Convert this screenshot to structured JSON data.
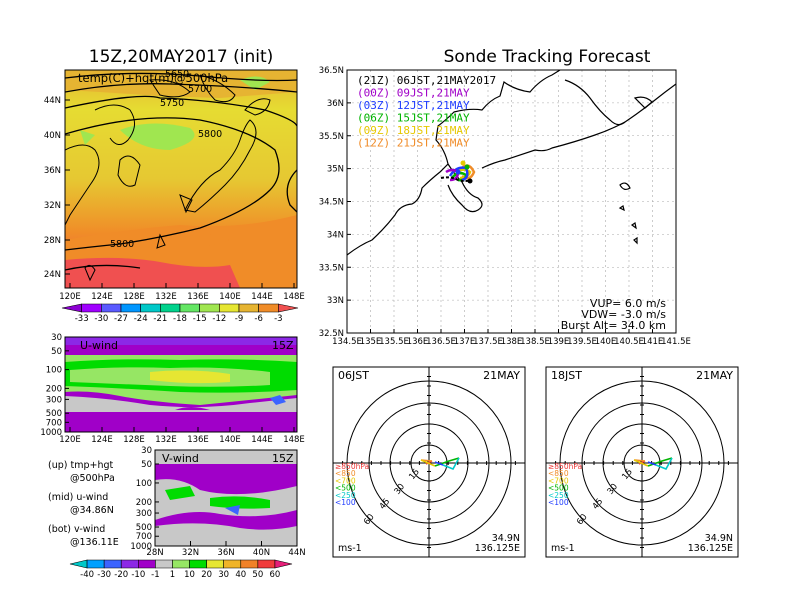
{
  "left": {
    "map_title": "15Z,20MAY2017 (init)",
    "map_label": "temp(C)+hgt(m)@500hPa",
    "contour_labels": [
      "5650",
      "5700",
      "5750",
      "5800",
      "5800"
    ],
    "lat_ticks": [
      "44N",
      "40N",
      "36N",
      "32N",
      "28N",
      "24N"
    ],
    "lon_ticks": [
      "120E",
      "124E",
      "128E",
      "132E",
      "136E",
      "140E",
      "144E",
      "148E"
    ],
    "temp_colorbar": [
      "-33",
      "-30",
      "-27",
      "-24",
      "-21",
      "-18",
      "-15",
      "-12",
      "-9",
      "-6",
      "-3"
    ],
    "temp_colors": [
      "#8c00d2",
      "#a000ff",
      "#5a5aff",
      "#0096ff",
      "#00c8c8",
      "#00d28c",
      "#64e664",
      "#a0e650",
      "#e6e632",
      "#e6b432",
      "#f08c28",
      "#f05050"
    ],
    "uwind_label": "U-wind",
    "uwind_time": "15Z",
    "pressure_ticks": [
      "30",
      "50",
      "100",
      "200",
      "300",
      "500",
      "700",
      "1000"
    ],
    "vwind_label": "V-wind",
    "vwind_time": "15Z",
    "vwind_lat_ticks": [
      "28N",
      "32N",
      "36N",
      "40N",
      "44N"
    ],
    "note_up_1": "(up)  tmp+hgt",
    "note_up_2": "@500hPa",
    "note_mid_1": "(mid)  u-wind",
    "note_mid_2": "@34.86N",
    "note_bot_1": "(bot)  v-wind",
    "note_bot_2": "@136.11E",
    "wind_colorbar": [
      "-40",
      "-30",
      "-20",
      "-10",
      "-1",
      "1",
      "10",
      "20",
      "30",
      "40",
      "50",
      "60"
    ],
    "wind_colors": [
      "#00c8c8",
      "#00a0ff",
      "#3c64ff",
      "#8c28e6",
      "#a000c8",
      "#c8c8c8",
      "#96e664",
      "#00dc00",
      "#e6e632",
      "#f0b428",
      "#f08228",
      "#f03c3c",
      "#e61e78"
    ]
  },
  "right": {
    "title": "Sonde Tracking Forecast",
    "lat_ticks": [
      "36.5N",
      "36N",
      "35.5N",
      "35N",
      "34.5N",
      "34N",
      "33.5N",
      "33N",
      "32.5N"
    ],
    "lon_ticks": [
      "134.5E",
      "135E",
      "135.5E",
      "136E",
      "136.5E",
      "137E",
      "137.5E",
      "138E",
      "138.5E",
      "139E",
      "139.5E",
      "140E",
      "140.5E",
      "141E",
      "141.5E"
    ],
    "legend": [
      {
        "label": "(21Z)  06JST,21MAY2017",
        "color": "#000000"
      },
      {
        "label": "(00Z)  09JST,21MAY",
        "color": "#a000c8"
      },
      {
        "label": "(03Z)  12JST,21MAY",
        "color": "#1e3cff"
      },
      {
        "label": "(06Z)  15JST,21MAY",
        "color": "#00b400"
      },
      {
        "label": "(09Z)  18JST,21MAY",
        "color": "#e6c800"
      },
      {
        "label": "(12Z)  21JST,21MAY",
        "color": "#f08c28"
      }
    ],
    "vup": "VUP=  6.0 m/s",
    "vdw": "VDW= -3.0 m/s",
    "burst": "Burst Alt= 34.0 km"
  },
  "polar_left": {
    "time": "06JST",
    "date": "21MAY",
    "ring_labels": [
      "15",
      "30",
      "45",
      "60"
    ],
    "levels": [
      "≥850hPa",
      "<850",
      "<700",
      "<500",
      "<250",
      "<100"
    ],
    "level_colors": [
      "#f03c3c",
      "#f08c28",
      "#e6c800",
      "#00b400",
      "#00c8c8",
      "#1e3cff"
    ],
    "unit": "ms-1",
    "lat": "34.9N",
    "lon": "136.125E"
  },
  "polar_right": {
    "time": "18JST",
    "date": "21MAY",
    "ring_labels": [
      "15",
      "30",
      "45",
      "60"
    ],
    "levels": [
      "≥850hPa",
      "<850",
      "<700",
      "<500",
      "<250",
      "<100"
    ],
    "level_colors": [
      "#f03c3c",
      "#f08c28",
      "#e6c800",
      "#00b400",
      "#00c8c8",
      "#1e3cff"
    ],
    "unit": "ms-1",
    "lat": "34.9N",
    "lon": "136.125E"
  }
}
